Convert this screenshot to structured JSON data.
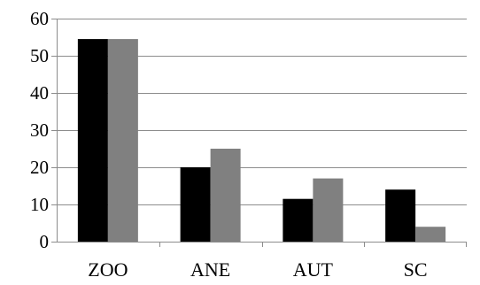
{
  "chart_data": {
    "type": "bar",
    "categories": [
      "ZOO",
      "ANE",
      "AUT",
      "SC"
    ],
    "series": [
      {
        "color": "#000000",
        "values": [
          54.5,
          20,
          11.5,
          14
        ]
      },
      {
        "color": "#808080",
        "values": [
          54.5,
          25,
          17,
          4
        ]
      }
    ],
    "y_ticks": [
      "0",
      "10",
      "20",
      "30",
      "40",
      "50",
      "60"
    ],
    "ylim": [
      0,
      60
    ],
    "grid": true,
    "legend": "none",
    "title": "",
    "xlabel": "",
    "ylabel": ""
  }
}
